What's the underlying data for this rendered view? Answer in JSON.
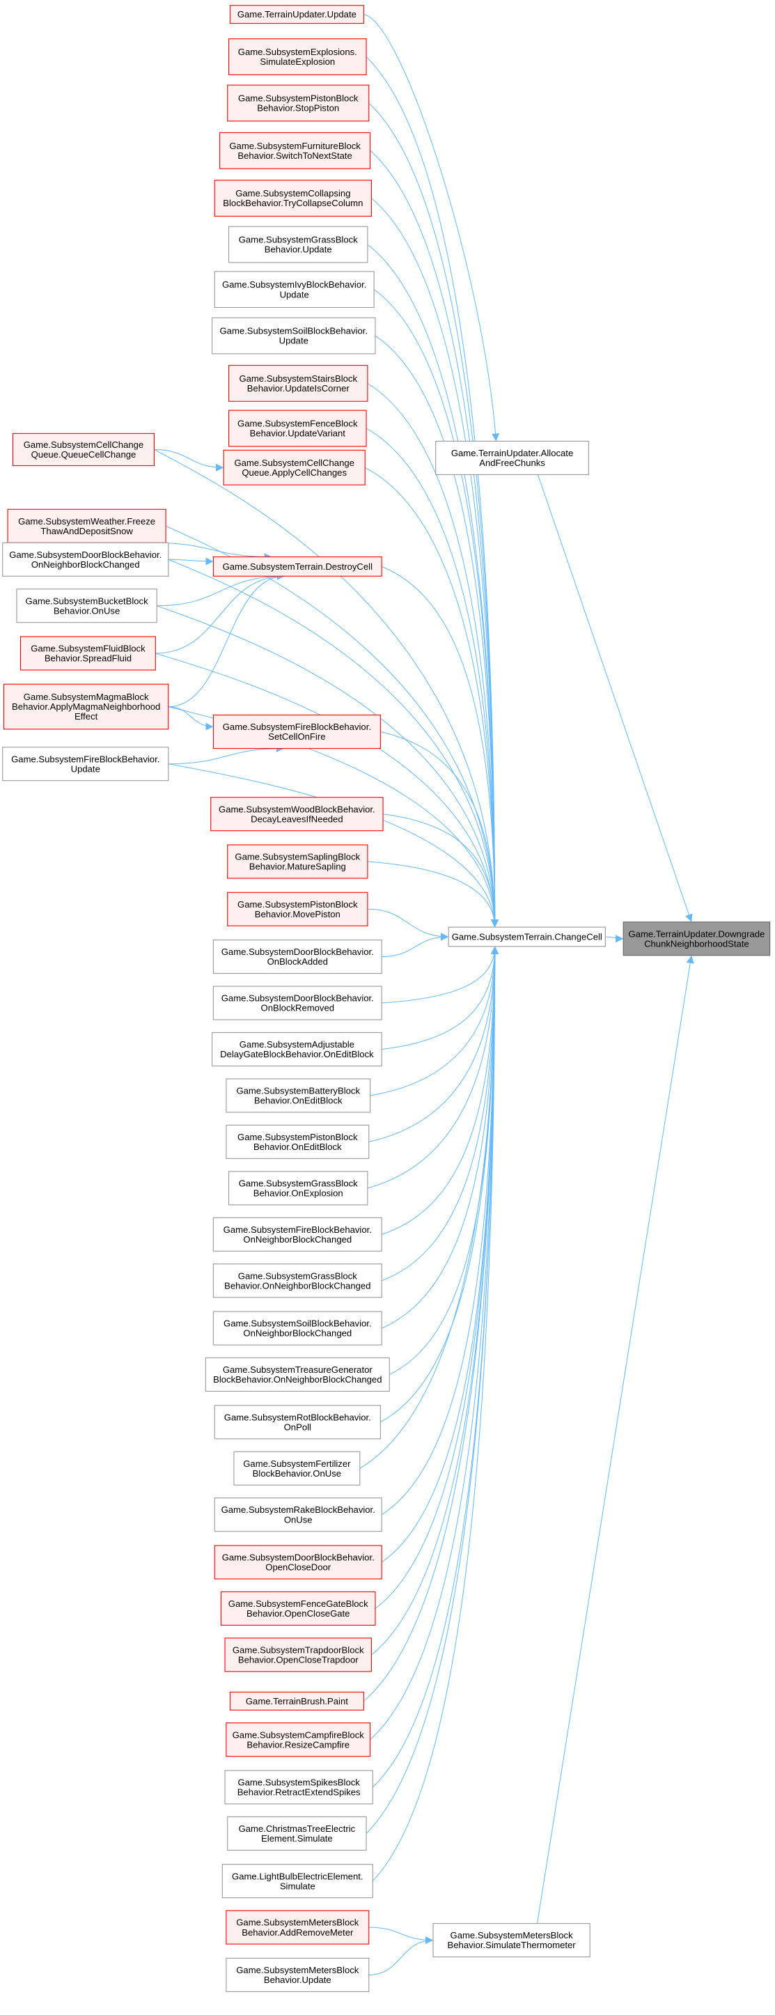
{
  "colors": {
    "edge": "#63b8ff",
    "red_border": "#ff0000",
    "red_fill": "#fff0f0",
    "gray_border": "#999999",
    "gray_fill": "#ffffff",
    "target_fill": "#999999",
    "target_border": "#666666"
  },
  "nodes": [
    {
      "id": "n1",
      "lines": [
        "Game.TerrainUpdater.Update"
      ],
      "style": "red"
    },
    {
      "id": "n2",
      "lines": [
        "Game.SubsystemExplosions.",
        "SimulateExplosion"
      ],
      "style": "red"
    },
    {
      "id": "n3",
      "lines": [
        "Game.SubsystemPistonBlock",
        "Behavior.StopPiston"
      ],
      "style": "red"
    },
    {
      "id": "n4",
      "lines": [
        "Game.SubsystemFurnitureBlock",
        "Behavior.SwitchToNextState"
      ],
      "style": "red"
    },
    {
      "id": "n5",
      "lines": [
        "Game.SubsystemCollapsing",
        "BlockBehavior.TryCollapseColumn"
      ],
      "style": "red"
    },
    {
      "id": "n6",
      "lines": [
        "Game.SubsystemGrassBlock",
        "Behavior.Update"
      ],
      "style": "gray"
    },
    {
      "id": "n7",
      "lines": [
        "Game.SubsystemIvyBlockBehavior.",
        "Update"
      ],
      "style": "gray"
    },
    {
      "id": "n8",
      "lines": [
        "Game.SubsystemSoilBlockBehavior.",
        "Update"
      ],
      "style": "gray"
    },
    {
      "id": "n9",
      "lines": [
        "Game.SubsystemStairsBlock",
        "Behavior.UpdateIsCorner"
      ],
      "style": "red"
    },
    {
      "id": "n10",
      "lines": [
        "Game.SubsystemFenceBlock",
        "Behavior.UpdateVariant"
      ],
      "style": "red"
    },
    {
      "id": "n11",
      "lines": [
        "Game.SubsystemCellChange",
        "Queue.QueueCellChange"
      ],
      "style": "red"
    },
    {
      "id": "n12",
      "lines": [
        "Game.SubsystemCellChange",
        "Queue.ApplyCellChanges"
      ],
      "style": "red"
    },
    {
      "id": "n13",
      "lines": [
        "Game.SubsystemWeather.Freeze",
        "ThawAndDepositSnow"
      ],
      "style": "red"
    },
    {
      "id": "n14",
      "lines": [
        "Game.SubsystemDoorBlockBehavior.",
        "OnNeighborBlockChanged"
      ],
      "style": "gray"
    },
    {
      "id": "n15",
      "lines": [
        "Game.SubsystemTerrain.DestroyCell"
      ],
      "style": "red"
    },
    {
      "id": "n16",
      "lines": [
        "Game.SubsystemBucketBlock",
        "Behavior.OnUse"
      ],
      "style": "gray"
    },
    {
      "id": "n17",
      "lines": [
        "Game.SubsystemFluidBlock",
        "Behavior.SpreadFluid"
      ],
      "style": "red"
    },
    {
      "id": "n18",
      "lines": [
        "Game.SubsystemMagmaBlock",
        "Behavior.ApplyMagmaNeighborhood",
        "Effect"
      ],
      "style": "red"
    },
    {
      "id": "n19",
      "lines": [
        "Game.SubsystemFireBlockBehavior.",
        "SetCellOnFire"
      ],
      "style": "red"
    },
    {
      "id": "n20",
      "lines": [
        "Game.SubsystemFireBlockBehavior.",
        "Update"
      ],
      "style": "gray"
    },
    {
      "id": "n21",
      "lines": [
        "Game.SubsystemWoodBlockBehavior.",
        "DecayLeavesIfNeeded"
      ],
      "style": "red"
    },
    {
      "id": "n22",
      "lines": [
        "Game.SubsystemSaplingBlock",
        "Behavior.MatureSapling"
      ],
      "style": "red"
    },
    {
      "id": "n23",
      "lines": [
        "Game.SubsystemPistonBlock",
        "Behavior.MovePiston"
      ],
      "style": "red"
    },
    {
      "id": "n24",
      "lines": [
        "Game.SubsystemDoorBlockBehavior.",
        "OnBlockAdded"
      ],
      "style": "gray"
    },
    {
      "id": "n25",
      "lines": [
        "Game.SubsystemDoorBlockBehavior.",
        "OnBlockRemoved"
      ],
      "style": "gray"
    },
    {
      "id": "n26",
      "lines": [
        "Game.SubsystemAdjustable",
        "DelayGateBlockBehavior.OnEditBlock"
      ],
      "style": "gray"
    },
    {
      "id": "n27",
      "lines": [
        "Game.SubsystemBatteryBlock",
        "Behavior.OnEditBlock"
      ],
      "style": "gray"
    },
    {
      "id": "n28",
      "lines": [
        "Game.SubsystemPistonBlock",
        "Behavior.OnEditBlock"
      ],
      "style": "gray"
    },
    {
      "id": "n29",
      "lines": [
        "Game.SubsystemGrassBlock",
        "Behavior.OnExplosion"
      ],
      "style": "gray"
    },
    {
      "id": "n30",
      "lines": [
        "Game.SubsystemFireBlockBehavior.",
        "OnNeighborBlockChanged"
      ],
      "style": "gray"
    },
    {
      "id": "n31",
      "lines": [
        "Game.SubsystemGrassBlock",
        "Behavior.OnNeighborBlockChanged"
      ],
      "style": "gray"
    },
    {
      "id": "n32",
      "lines": [
        "Game.SubsystemSoilBlockBehavior.",
        "OnNeighborBlockChanged"
      ],
      "style": "gray"
    },
    {
      "id": "n33",
      "lines": [
        "Game.SubsystemTreasureGenerator",
        "BlockBehavior.OnNeighborBlockChanged"
      ],
      "style": "gray"
    },
    {
      "id": "n34",
      "lines": [
        "Game.SubsystemRotBlockBehavior.",
        "OnPoll"
      ],
      "style": "gray"
    },
    {
      "id": "n35",
      "lines": [
        "Game.SubsystemFertilizer",
        "BlockBehavior.OnUse"
      ],
      "style": "gray"
    },
    {
      "id": "n36",
      "lines": [
        "Game.SubsystemRakeBlockBehavior.",
        "OnUse"
      ],
      "style": "gray"
    },
    {
      "id": "n37",
      "lines": [
        "Game.SubsystemDoorBlockBehavior.",
        "OpenCloseDoor"
      ],
      "style": "red"
    },
    {
      "id": "n38",
      "lines": [
        "Game.SubsystemFenceGateBlock",
        "Behavior.OpenCloseGate"
      ],
      "style": "red"
    },
    {
      "id": "n39",
      "lines": [
        "Game.SubsystemTrapdoorBlock",
        "Behavior.OpenCloseTrapdoor"
      ],
      "style": "red"
    },
    {
      "id": "n40",
      "lines": [
        "Game.TerrainBrush.Paint"
      ],
      "style": "red"
    },
    {
      "id": "n41",
      "lines": [
        "Game.SubsystemCampfireBlock",
        "Behavior.ResizeCampfire"
      ],
      "style": "red"
    },
    {
      "id": "n42",
      "lines": [
        "Game.SubsystemSpikesBlock",
        "Behavior.RetractExtendSpikes"
      ],
      "style": "gray"
    },
    {
      "id": "n43",
      "lines": [
        "Game.ChristmasTreeElectric",
        "Element.Simulate"
      ],
      "style": "gray"
    },
    {
      "id": "n44",
      "lines": [
        "Game.LightBulbElectricElement.",
        "Simulate"
      ],
      "style": "gray"
    },
    {
      "id": "n45",
      "lines": [
        "Game.SubsystemMetersBlock",
        "Behavior.AddRemoveMeter"
      ],
      "style": "red"
    },
    {
      "id": "n46",
      "lines": [
        "Game.SubsystemMetersBlock",
        "Behavior.Update"
      ],
      "style": "gray"
    },
    {
      "id": "n47",
      "lines": [
        "Game.SubsystemTerrain.ChangeCell"
      ],
      "style": "gray"
    },
    {
      "id": "n48",
      "lines": [
        "Game.TerrainUpdater.Allocate",
        "AndFreeChunks"
      ],
      "style": "gray"
    },
    {
      "id": "n49",
      "lines": [
        "Game.SubsystemMetersBlock",
        "Behavior.SimulateThermometer"
      ],
      "style": "gray"
    },
    {
      "id": "n50",
      "lines": [
        "Game.TerrainUpdater.Downgrade",
        "ChunkNeighborhoodState"
      ],
      "style": "target"
    }
  ],
  "edges": [
    [
      "n1",
      "n48"
    ],
    [
      "n2",
      "n47"
    ],
    [
      "n3",
      "n47"
    ],
    [
      "n4",
      "n47"
    ],
    [
      "n5",
      "n47"
    ],
    [
      "n6",
      "n47"
    ],
    [
      "n7",
      "n47"
    ],
    [
      "n8",
      "n47"
    ],
    [
      "n9",
      "n47"
    ],
    [
      "n10",
      "n47"
    ],
    [
      "n11",
      "n12"
    ],
    [
      "n11",
      "n47"
    ],
    [
      "n12",
      "n47"
    ],
    [
      "n13",
      "n15"
    ],
    [
      "n13",
      "n47"
    ],
    [
      "n14",
      "n15"
    ],
    [
      "n14",
      "n47"
    ],
    [
      "n16",
      "n15"
    ],
    [
      "n16",
      "n47"
    ],
    [
      "n17",
      "n15"
    ],
    [
      "n17",
      "n47"
    ],
    [
      "n18",
      "n15"
    ],
    [
      "n18",
      "n19"
    ],
    [
      "n18",
      "n47"
    ],
    [
      "n20",
      "n19"
    ],
    [
      "n20",
      "n47"
    ],
    [
      "n15",
      "n47"
    ],
    [
      "n19",
      "n47"
    ],
    [
      "n21",
      "n47"
    ],
    [
      "n22",
      "n47"
    ],
    [
      "n23",
      "n47"
    ],
    [
      "n24",
      "n47"
    ],
    [
      "n25",
      "n47"
    ],
    [
      "n26",
      "n47"
    ],
    [
      "n27",
      "n47"
    ],
    [
      "n28",
      "n47"
    ],
    [
      "n29",
      "n47"
    ],
    [
      "n30",
      "n47"
    ],
    [
      "n31",
      "n47"
    ],
    [
      "n32",
      "n47"
    ],
    [
      "n33",
      "n47"
    ],
    [
      "n34",
      "n47"
    ],
    [
      "n35",
      "n47"
    ],
    [
      "n36",
      "n47"
    ],
    [
      "n37",
      "n47"
    ],
    [
      "n38",
      "n47"
    ],
    [
      "n39",
      "n47"
    ],
    [
      "n40",
      "n47"
    ],
    [
      "n41",
      "n47"
    ],
    [
      "n42",
      "n47"
    ],
    [
      "n43",
      "n47"
    ],
    [
      "n44",
      "n47"
    ],
    [
      "n45",
      "n49"
    ],
    [
      "n46",
      "n49"
    ],
    [
      "n47",
      "n50"
    ],
    [
      "n48",
      "n50"
    ],
    [
      "n49",
      "n50"
    ]
  ]
}
